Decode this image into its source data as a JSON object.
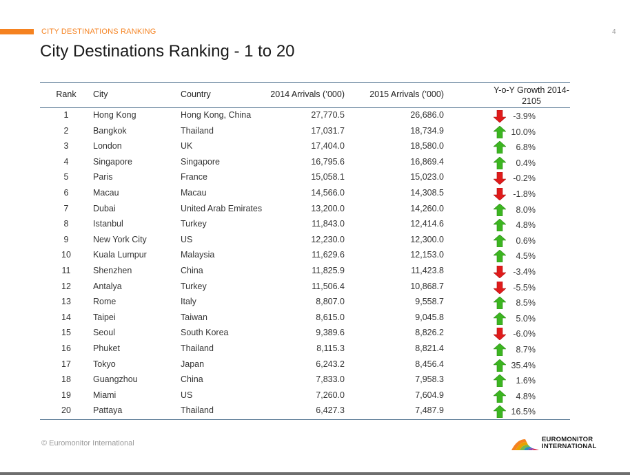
{
  "header": {
    "section_label": "CITY DESTINATIONS RANKING",
    "page_number": "4",
    "title": "City Destinations Ranking - 1 to 20"
  },
  "table": {
    "columns": {
      "rank": "Rank",
      "city": "City",
      "country": "Country",
      "arrivals_2014": "2014 Arrivals (’000)",
      "arrivals_2015": "2015 Arrivals (’000)",
      "growth_line1": "Y-o-Y Growth 2014-",
      "growth_line2": "2105"
    },
    "rows": [
      {
        "rank": "1",
        "city": "Hong Kong",
        "country": "Hong Kong, China",
        "a2014": "27,770.5",
        "a2015": "26,686.0",
        "growth": "-3.9%",
        "direction": "down"
      },
      {
        "rank": "2",
        "city": "Bangkok",
        "country": "Thailand",
        "a2014": "17,031.7",
        "a2015": "18,734.9",
        "growth": "10.0%",
        "direction": "up"
      },
      {
        "rank": "3",
        "city": "London",
        "country": "UK",
        "a2014": "17,404.0",
        "a2015": "18,580.0",
        "growth": "6.8%",
        "direction": "up"
      },
      {
        "rank": "4",
        "city": "Singapore",
        "country": "Singapore",
        "a2014": "16,795.6",
        "a2015": "16,869.4",
        "growth": "0.4%",
        "direction": "up"
      },
      {
        "rank": "5",
        "city": "Paris",
        "country": "France",
        "a2014": "15,058.1",
        "a2015": "15,023.0",
        "growth": "-0.2%",
        "direction": "down"
      },
      {
        "rank": "6",
        "city": "Macau",
        "country": "Macau",
        "a2014": "14,566.0",
        "a2015": "14,308.5",
        "growth": "-1.8%",
        "direction": "down"
      },
      {
        "rank": "7",
        "city": "Dubai",
        "country": "United Arab Emirates",
        "a2014": "13,200.0",
        "a2015": "14,260.0",
        "growth": "8.0%",
        "direction": "up"
      },
      {
        "rank": "8",
        "city": "Istanbul",
        "country": "Turkey",
        "a2014": "11,843.0",
        "a2015": "12,414.6",
        "growth": "4.8%",
        "direction": "up"
      },
      {
        "rank": "9",
        "city": "New York City",
        "country": "US",
        "a2014": "12,230.0",
        "a2015": "12,300.0",
        "growth": "0.6%",
        "direction": "up"
      },
      {
        "rank": "10",
        "city": "Kuala Lumpur",
        "country": "Malaysia",
        "a2014": "11,629.6",
        "a2015": "12,153.0",
        "growth": "4.5%",
        "direction": "up"
      },
      {
        "rank": "11",
        "city": "Shenzhen",
        "country": "China",
        "a2014": "11,825.9",
        "a2015": "11,423.8",
        "growth": "-3.4%",
        "direction": "down"
      },
      {
        "rank": "12",
        "city": "Antalya",
        "country": "Turkey",
        "a2014": "11,506.4",
        "a2015": "10,868.7",
        "growth": "-5.5%",
        "direction": "down"
      },
      {
        "rank": "13",
        "city": "Rome",
        "country": "Italy",
        "a2014": "8,807.0",
        "a2015": "9,558.7",
        "growth": "8.5%",
        "direction": "up"
      },
      {
        "rank": "14",
        "city": "Taipei",
        "country": "Taiwan",
        "a2014": "8,615.0",
        "a2015": "9,045.8",
        "growth": "5.0%",
        "direction": "up"
      },
      {
        "rank": "15",
        "city": "Seoul",
        "country": "South Korea",
        "a2014": "9,389.6",
        "a2015": "8,826.2",
        "growth": "-6.0%",
        "direction": "down"
      },
      {
        "rank": "16",
        "city": "Phuket",
        "country": "Thailand",
        "a2014": "8,115.3",
        "a2015": "8,821.4",
        "growth": "8.7%",
        "direction": "up"
      },
      {
        "rank": "17",
        "city": "Tokyo",
        "country": "Japan",
        "a2014": "6,243.2",
        "a2015": "8,456.4",
        "growth": "35.4%",
        "direction": "up"
      },
      {
        "rank": "18",
        "city": "Guangzhou",
        "country": "China",
        "a2014": "7,833.0",
        "a2015": "7,958.3",
        "growth": "1.6%",
        "direction": "up"
      },
      {
        "rank": "19",
        "city": "Miami",
        "country": "US",
        "a2014": "7,260.0",
        "a2015": "7,604.9",
        "growth": "4.8%",
        "direction": "up"
      },
      {
        "rank": "20",
        "city": "Pattaya",
        "country": "Thailand",
        "a2014": "6,427.3",
        "a2015": "7,487.9",
        "growth": "16.5%",
        "direction": "up"
      }
    ]
  },
  "footer": {
    "copyright": "© Euromonitor International",
    "logo_line1": "EUROMONITOR",
    "logo_line2": "INTERNATIONAL"
  },
  "colors": {
    "accent": "#f58220",
    "arrow_up": "#3cb521",
    "arrow_down": "#e01b1b",
    "rule": "#5a7a95"
  }
}
